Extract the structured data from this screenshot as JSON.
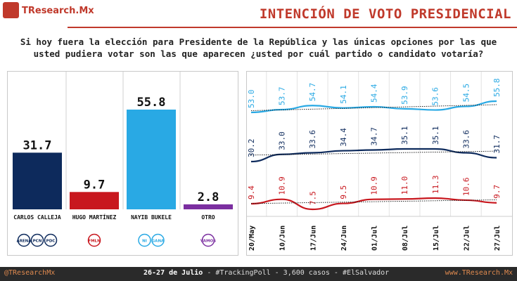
{
  "header": {
    "brand": "TResearch.Mx",
    "title": "INTENCIÓN DE VOTO PRESIDENCIAL",
    "question_line1": "Si hoy fuera la elección para Presidente de la República y las únicas opciones por las que",
    "question_line2": "usted pudiera votar son las que aparecen ¿usted por cuál partido o candidato votaría?"
  },
  "footer": {
    "left": "@TResearchMx",
    "center_bold": "26-27 de Julio",
    "center_rest": " - #TrackingPoll - 3,600 casos - #ElSalvador",
    "right": "www.TResearch.Mx"
  },
  "colors": {
    "calleja": "#0d2a5c",
    "martinez": "#c8171e",
    "bukele": "#29a9e4",
    "otro": "#7b2fa0",
    "accent": "#c0392b"
  },
  "chart_data": [
    {
      "type": "bar",
      "categories": [
        "CARLOS CALLEJA",
        "HUGO MARTÍNEZ",
        "NAYIB BUKELE",
        "OTRO"
      ],
      "values": [
        31.7,
        9.7,
        55.8,
        2.8
      ],
      "value_labels": [
        "31.7",
        "9.7",
        "55.8",
        "2.8"
      ],
      "ylim": [
        0,
        60
      ],
      "party_logos": [
        [
          "ARENA",
          "PCN",
          "PDC"
        ],
        [
          "FMLN"
        ],
        [
          "NI",
          "GANA"
        ],
        [
          "VAMOS"
        ]
      ]
    },
    {
      "type": "line",
      "categories": [
        "20/May",
        "10/Jun",
        "17/Jun",
        "24/Jun",
        "01/Jul",
        "08/Jul",
        "15/Jul",
        "22/Jul",
        "27/Jul"
      ],
      "series": [
        {
          "key": "bukele",
          "values": [
            53.0,
            53.7,
            54.7,
            54.1,
            54.4,
            53.9,
            53.6,
            54.5,
            55.8
          ],
          "labels": [
            "53.0",
            "53.7",
            "54.7",
            "54.1",
            "54.4",
            "53.9",
            "53.6",
            "54.5",
            "55.8"
          ]
        },
        {
          "key": "calleja",
          "values": [
            30.2,
            33.0,
            33.6,
            34.4,
            34.7,
            35.1,
            35.1,
            33.6,
            31.7
          ],
          "labels": [
            "30.2",
            "33.0",
            "33.6",
            "34.4",
            "34.7",
            "35.1",
            "35.1",
            "33.6",
            "31.7"
          ]
        },
        {
          "key": "martinez",
          "values": [
            9.4,
            10.9,
            7.5,
            9.5,
            10.9,
            11.0,
            11.3,
            10.6,
            9.7
          ],
          "labels": [
            "9.4",
            "10.9",
            "7.5",
            "9.5",
            "10.9",
            "11.0",
            "11.3",
            "10.6",
            "9.7"
          ]
        }
      ],
      "trendline": "dotted"
    }
  ]
}
